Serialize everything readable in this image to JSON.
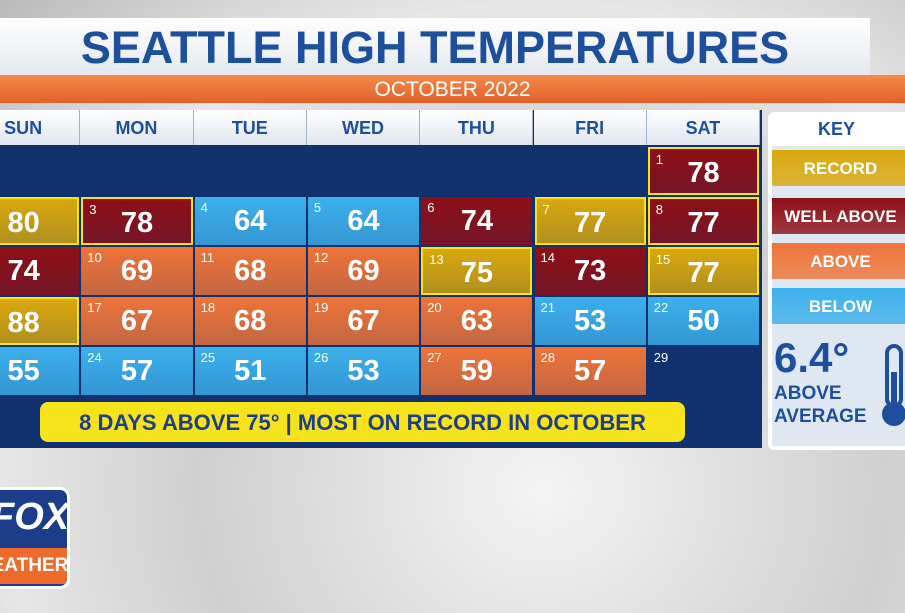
{
  "header": {
    "title": "SEATTLE HIGH TEMPERATURES",
    "subtitle": "OCTOBER 2022"
  },
  "calendar": {
    "weekdays": [
      "SUN",
      "MON",
      "TUE",
      "WED",
      "THU",
      "FRI",
      "SAT"
    ],
    "weeks": [
      [
        {
          "level": "empty"
        },
        {
          "level": "empty"
        },
        {
          "level": "empty"
        },
        {
          "level": "empty"
        },
        {
          "level": "empty"
        },
        {
          "level": "empty"
        },
        {
          "day": 1,
          "temp": 78,
          "level": "well-above",
          "outlined": true
        }
      ],
      [
        {
          "temp": 80,
          "level": "record",
          "outlined": true
        },
        {
          "day": 3,
          "temp": 78,
          "level": "well-above",
          "outlined": true
        },
        {
          "day": 4,
          "temp": 64,
          "level": "below"
        },
        {
          "day": 5,
          "temp": 64,
          "level": "below"
        },
        {
          "day": 6,
          "temp": 74,
          "level": "well-above"
        },
        {
          "day": 7,
          "temp": 77,
          "level": "record",
          "outlined": true
        },
        {
          "day": 8,
          "temp": 77,
          "level": "well-above",
          "outlined": true
        }
      ],
      [
        {
          "temp": 74,
          "level": "well-above"
        },
        {
          "day": 10,
          "temp": 69,
          "level": "above"
        },
        {
          "day": 11,
          "temp": 68,
          "level": "above"
        },
        {
          "day": 12,
          "temp": 69,
          "level": "above"
        },
        {
          "day": 13,
          "temp": 75,
          "level": "record",
          "outlined": true
        },
        {
          "day": 14,
          "temp": 73,
          "level": "well-above"
        },
        {
          "day": 15,
          "temp": 77,
          "level": "record",
          "outlined": true
        }
      ],
      [
        {
          "temp": 88,
          "level": "record",
          "outlined": true
        },
        {
          "day": 17,
          "temp": 67,
          "level": "above"
        },
        {
          "day": 18,
          "temp": 68,
          "level": "above"
        },
        {
          "day": 19,
          "temp": 67,
          "level": "above"
        },
        {
          "day": 20,
          "temp": 63,
          "level": "above"
        },
        {
          "day": 21,
          "temp": 53,
          "level": "below"
        },
        {
          "day": 22,
          "temp": 50,
          "level": "below"
        }
      ],
      [
        {
          "temp": 55,
          "level": "below"
        },
        {
          "day": 24,
          "temp": 57,
          "level": "below"
        },
        {
          "day": 25,
          "temp": 51,
          "level": "below"
        },
        {
          "day": 26,
          "temp": 53,
          "level": "below"
        },
        {
          "day": 27,
          "temp": 59,
          "level": "above"
        },
        {
          "day": 28,
          "temp": 57,
          "level": "above"
        },
        {
          "day": 29,
          "level": "empty"
        }
      ]
    ],
    "banner": "8 DAYS ABOVE 75° | MOST ON RECORD IN OCTOBER"
  },
  "key": {
    "title": "KEY",
    "items": [
      {
        "label": "RECORD",
        "level": "record",
        "color": "#d9a80c"
      },
      {
        "label": "WELL ABOVE",
        "level": "well-above",
        "color": "#8e0f16"
      },
      {
        "label": "ABOVE",
        "level": "above",
        "color": "#ef7438"
      },
      {
        "label": "BELOW",
        "level": "below",
        "color": "#3cb0ec"
      }
    ],
    "empty_color": "#10306e",
    "anomaly": "6.4°",
    "anomaly_text": [
      "ABOVE",
      "AVERAGE"
    ]
  },
  "logo": {
    "top": "FOX",
    "bottom": "WEATHER"
  }
}
